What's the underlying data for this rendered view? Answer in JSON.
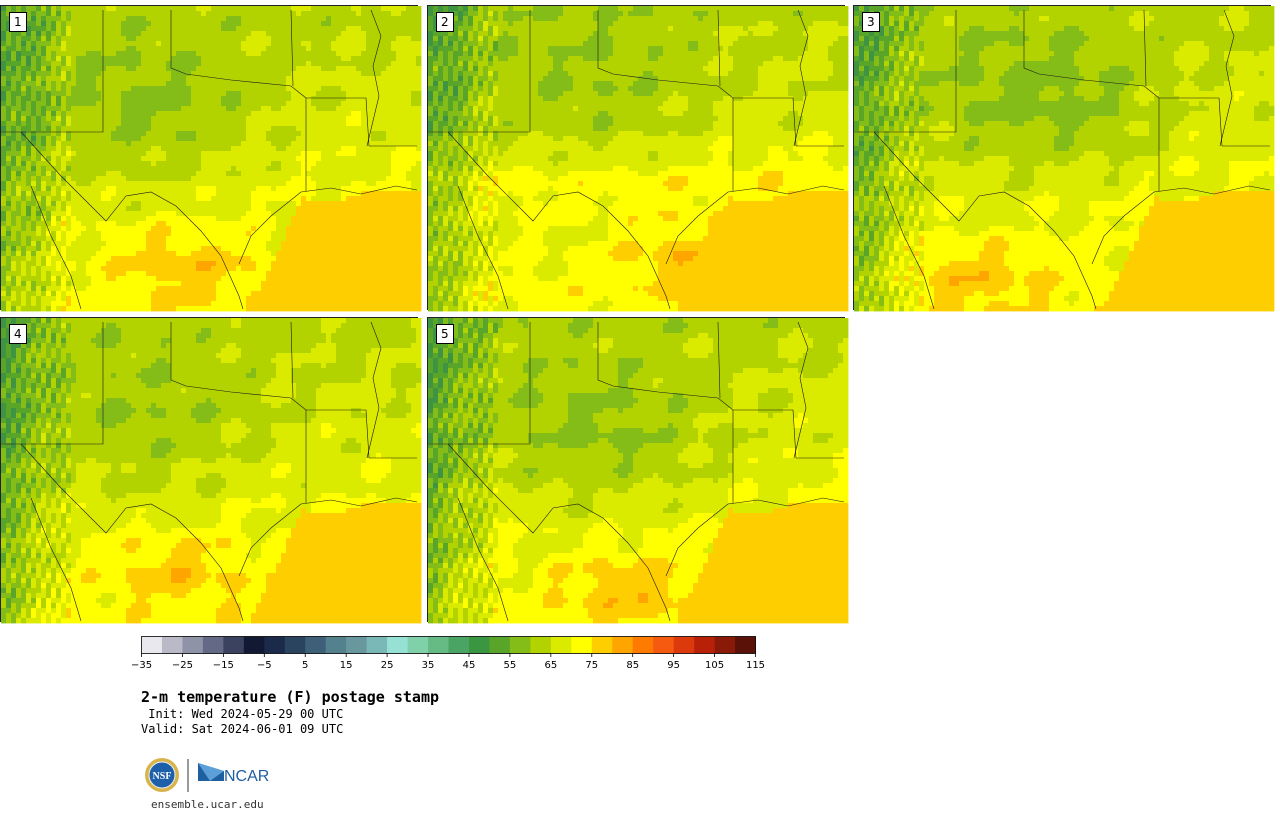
{
  "panels": [
    {
      "label": "1",
      "variant": 0
    },
    {
      "label": "2",
      "variant": 1
    },
    {
      "label": "3",
      "variant": 2
    },
    {
      "label": "4",
      "variant": 3
    },
    {
      "label": "5",
      "variant": 4
    }
  ],
  "colorbar": {
    "colors": [
      "#e8e8ee",
      "#b9b9c8",
      "#8f93a8",
      "#646a85",
      "#3a4260",
      "#121a33",
      "#1b2a4a",
      "#2a4460",
      "#3d6078",
      "#55808e",
      "#68989e",
      "#7ab8b8",
      "#96e0d4",
      "#80d0aa",
      "#66bb84",
      "#4aa564",
      "#3a9640",
      "#58a52a",
      "#84bc18",
      "#b2d300",
      "#dbeb00",
      "#ffff00",
      "#ffce00",
      "#ffa500",
      "#ff7a00",
      "#f55a10",
      "#dc3a0c",
      "#b82008",
      "#8a1a08",
      "#5a1208"
    ],
    "tick_labels": [
      "−35",
      "−25",
      "−15",
      "−5",
      "5",
      "15",
      "25",
      "35",
      "45",
      "55",
      "65",
      "75",
      "85",
      "95",
      "105",
      "115"
    ]
  },
  "title": "2-m temperature (F) postage stamp",
  "init_line": " Init: Wed 2024-05-29 00 UTC",
  "valid_line": "Valid: Sat 2024-06-01 09 UTC",
  "logo": {
    "nsf_text": "NSF",
    "ncar_text": "NCAR"
  },
  "footer_url": "ensemble.ucar.edu"
}
